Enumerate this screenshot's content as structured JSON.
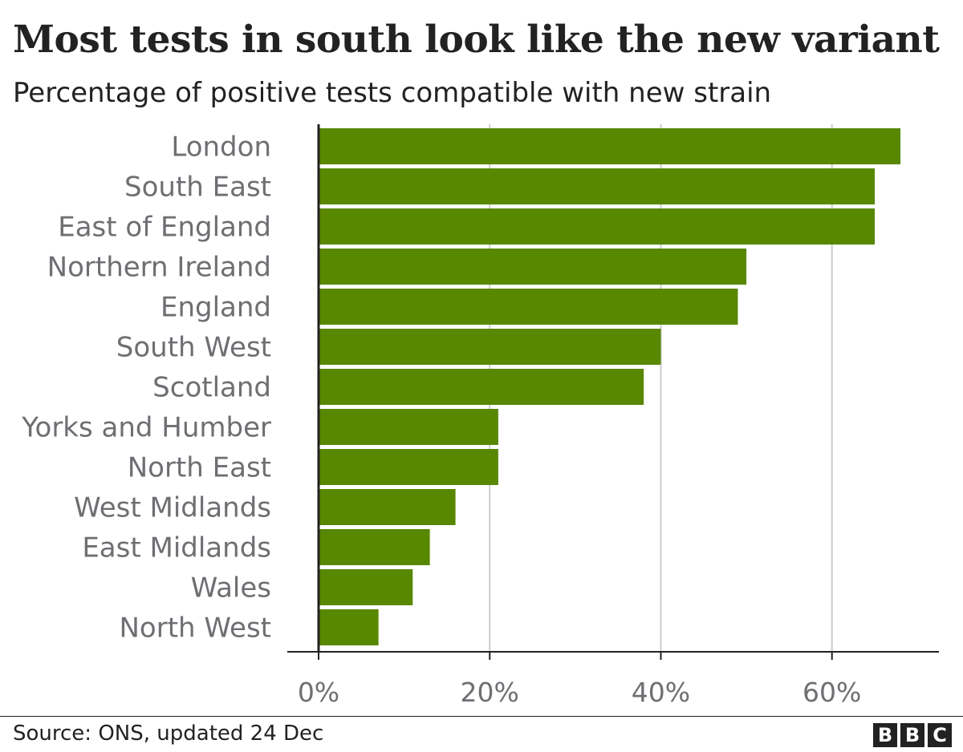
{
  "header": {
    "title": "Most tests in south look like the new variant",
    "subtitle": "Percentage of positive tests compatible with new strain"
  },
  "footer": {
    "source": "Source: ONS, updated 24 Dec",
    "logo_letters": [
      "B",
      "B",
      "C"
    ]
  },
  "chart_data": {
    "type": "bar",
    "orientation": "horizontal",
    "title": "Most tests in south look like the new variant",
    "subtitle": "Percentage of positive tests compatible with new strain",
    "categories": [
      "London",
      "South East",
      "East of England",
      "Northern Ireland",
      "England",
      "South West",
      "Scotland",
      "Yorks and Humber",
      "North East",
      "West Midlands",
      "East Midlands",
      "Wales",
      "North West"
    ],
    "values": [
      68,
      65,
      65,
      50,
      49,
      40,
      38,
      21,
      21,
      16,
      13,
      11,
      7
    ],
    "xlim": [
      0,
      71
    ],
    "xticks": [
      0,
      20,
      40,
      60
    ],
    "xtick_labels": [
      "0%",
      "20%",
      "40%",
      "60%"
    ],
    "grid": true,
    "bar_color": "#588700",
    "grid_color": "#cccccc",
    "axis_color": "#222222",
    "label_color": "#6e6e73"
  }
}
